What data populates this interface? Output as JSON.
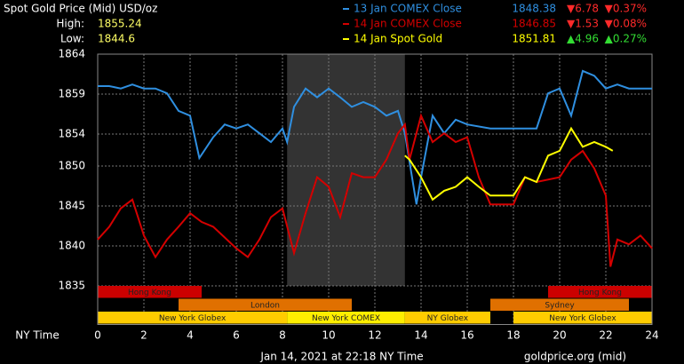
{
  "chart_data": {
    "type": "line",
    "title": "Spot Gold Price (Mid) USD/oz",
    "high_label": "High:",
    "high": 1855.24,
    "low_label": "Low:",
    "low": 1844.6,
    "x_label": "NY Time",
    "footer_left": "Jan 14, 2021 at 22:18 NY Time",
    "footer_right": "goldprice.org (mid)",
    "xlim": [
      0,
      24
    ],
    "xticks": [
      0,
      2,
      4,
      6,
      8,
      10,
      12,
      14,
      16,
      18,
      20,
      22,
      24
    ],
    "ylim": [
      1835,
      1864
    ],
    "yticks": [
      1835,
      1840,
      1845,
      1850,
      1854,
      1859,
      1864
    ],
    "grid": true,
    "series": [
      {
        "name": "13 Jan COMEX Close",
        "color": "#2f8fe0",
        "price": 1848.38,
        "change": "▼6.78",
        "pct": "▼0.37%",
        "change_color": "#ff2a2a",
        "x": [
          0,
          0.5,
          1,
          1.5,
          2,
          2.5,
          3,
          3.5,
          4,
          4.4,
          5,
          5.5,
          6,
          6.5,
          7,
          7.5,
          8,
          8.2,
          8.5,
          9,
          9.5,
          10,
          10.5,
          11,
          11.5,
          12,
          12.5,
          13,
          13.3,
          13.8,
          14,
          14.5,
          15,
          15.5,
          16,
          17,
          18,
          19,
          19.5,
          20,
          20.5,
          21,
          21.5,
          22,
          22.5,
          23,
          23.5,
          24
        ],
        "values": [
          1860,
          1860,
          1859.7,
          1860.2,
          1859.7,
          1859.7,
          1859.1,
          1856.9,
          1856.3,
          1851,
          1853.6,
          1855.2,
          1854.7,
          1855.2,
          1854.1,
          1853,
          1854.7,
          1853,
          1857.4,
          1859.7,
          1858.6,
          1859.7,
          1858.6,
          1857.4,
          1858,
          1857.4,
          1856.3,
          1856.9,
          1854.1,
          1845.2,
          1848.6,
          1856.3,
          1854.1,
          1855.8,
          1855.2,
          1854.7,
          1854.7,
          1854.7,
          1859.1,
          1859.7,
          1856.3,
          1861.9,
          1861.3,
          1859.7,
          1860.2,
          1859.7,
          1859.7,
          1859.7
        ]
      },
      {
        "name": "14 Jan COMEX Close",
        "color": "#d40000",
        "price": 1846.85,
        "change": "▼1.53",
        "pct": "▼0.08%",
        "change_color": "#ff2a2a",
        "x": [
          0,
          0.5,
          1,
          1.5,
          2,
          2.5,
          3,
          3.5,
          4,
          4.5,
          5,
          6,
          6.5,
          7,
          7.5,
          8,
          8.5,
          9,
          9.5,
          10,
          10.5,
          11,
          11.5,
          12,
          12.5,
          13,
          13.3,
          13.5,
          14,
          14.5,
          15,
          15.5,
          16,
          16.5,
          17,
          18,
          18.5,
          19,
          20,
          20.5,
          21,
          21.5,
          22,
          22.2,
          22.5,
          23,
          23.5,
          24
        ],
        "values": [
          1840.8,
          1842.4,
          1844.7,
          1845.8,
          1841.3,
          1838.6,
          1840.8,
          1842.4,
          1844.1,
          1843,
          1842.4,
          1839.7,
          1838.6,
          1840.8,
          1843.6,
          1844.7,
          1839.1,
          1844.1,
          1848.6,
          1847.4,
          1843.6,
          1849.1,
          1848.6,
          1848.6,
          1850.8,
          1854.1,
          1855.2,
          1850.8,
          1856.3,
          1853,
          1854.1,
          1853,
          1853.6,
          1848.6,
          1845.2,
          1845.2,
          1848.6,
          1848,
          1848.6,
          1850.8,
          1851.9,
          1849.7,
          1846.3,
          1837.4,
          1840.8,
          1840.2,
          1841.3,
          1839.7
        ]
      },
      {
        "name": "14 Jan Spot Gold",
        "color": "#ffff00",
        "price": 1851.81,
        "change": "▲4.96",
        "pct": "▲0.27%",
        "change_color": "#33dd33",
        "x": [
          13.3,
          13.5,
          14,
          14.5,
          15,
          15.5,
          16,
          16.5,
          17,
          17.5,
          18,
          18.5,
          19,
          19.5,
          20,
          20.5,
          21,
          21.5,
          22,
          22.3
        ],
        "values": [
          1851.3,
          1850.8,
          1848.6,
          1845.8,
          1846.9,
          1847.4,
          1848.6,
          1847.4,
          1846.3,
          1846.3,
          1846.3,
          1848.6,
          1848,
          1851.3,
          1851.9,
          1854.7,
          1852.4,
          1853,
          1852.4,
          1851.9
        ]
      }
    ],
    "sessions": [
      {
        "name": "Hong Kong",
        "start": 0,
        "end": 4.5,
        "row": 0,
        "color": "#cc0000"
      },
      {
        "name": "Hong Kong",
        "start": 19.5,
        "end": 24,
        "row": 0,
        "color": "#cc0000"
      },
      {
        "name": "London",
        "start": 3.5,
        "end": 11,
        "row": 1,
        "color": "#e07000"
      },
      {
        "name": "Sydney",
        "start": 17,
        "end": 23,
        "row": 1,
        "color": "#e07000"
      },
      {
        "name": "New York Globex",
        "start": 0,
        "end": 8.2,
        "row": 2,
        "color": "#ffcc00"
      },
      {
        "name": "New York COMEX",
        "start": 8.2,
        "end": 13.3,
        "row": 2,
        "color": "#ffee00",
        "shade": true
      },
      {
        "name": "NY Globex",
        "start": 13.3,
        "end": 17,
        "row": 2,
        "color": "#ffcc00"
      },
      {
        "name": "New York Globex",
        "start": 18,
        "end": 24,
        "row": 2,
        "color": "#ffcc00"
      }
    ]
  }
}
